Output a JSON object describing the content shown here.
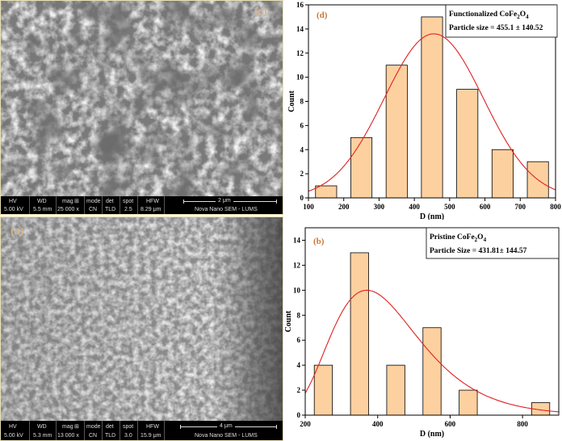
{
  "sem_top": {
    "label": "(c)",
    "header": [
      "HV",
      "WD",
      "mag",
      "mode",
      "det",
      "spot",
      "HFW"
    ],
    "values": [
      "5.00 kV",
      "5.5 mm",
      "25 000 x",
      "CN",
      "TLD",
      "2.5",
      "8.29 μm"
    ],
    "scale": "2 μm",
    "footer": "Nova Nano SEM - LUMS"
  },
  "sem_bottom": {
    "label": "(a)",
    "header": [
      "HV",
      "WD",
      "mag",
      "mode",
      "det",
      "spot",
      "HFW"
    ],
    "values": [
      "5.00 kV",
      "5.3 mm",
      "13 000 x",
      "CN",
      "TLD",
      "3.0",
      "15.9 μm"
    ],
    "scale": "4 μm",
    "footer": "Nova Nano SEM - LUMS"
  },
  "chart_data": [
    {
      "type": "bar",
      "panel_label": "(d)",
      "legend_title": "Functionalized  CoFe",
      "legend_title_sub1": "2",
      "legend_title_mid": "O",
      "legend_title_sub2": "4",
      "legend_text": "Particle size = 455.1 ± 140.52",
      "xlabel": "D (nm)",
      "ylabel": "Count",
      "xlim": [
        100,
        800
      ],
      "ylim": [
        0,
        16
      ],
      "xticks": [
        100,
        200,
        300,
        400,
        500,
        600,
        700,
        800
      ],
      "yticks": [
        0,
        2,
        4,
        6,
        8,
        10,
        12,
        14,
        16
      ],
      "bin_width": 60,
      "x": [
        150,
        250,
        350,
        450,
        550,
        650,
        750
      ],
      "values": [
        1,
        5,
        11,
        15,
        9,
        4,
        3
      ],
      "fit": {
        "type": "gaussian",
        "mean": 455.1,
        "sd": 140.52,
        "amplitude": 13.6
      },
      "bar_color": "#fdd0a0",
      "fit_color": "#e02020"
    },
    {
      "type": "bar",
      "panel_label": "(b)",
      "legend_title": "Pristine CoFe",
      "legend_title_sub1": "2",
      "legend_title_mid": "O",
      "legend_title_sub2": "4",
      "legend_text": "Particle Size = 431.81± 144.57",
      "xlabel": "D (nm)",
      "ylabel": "Count",
      "xlim": [
        200,
        900
      ],
      "ylim": [
        0,
        15
      ],
      "xticks": [
        200,
        400,
        600,
        800
      ],
      "yticks": [
        0,
        2,
        4,
        6,
        8,
        10,
        12,
        14
      ],
      "bin_width": 50,
      "x": [
        250,
        350,
        450,
        550,
        650,
        850
      ],
      "values": [
        4,
        13,
        4,
        7,
        2,
        1
      ],
      "fit": {
        "type": "lognormal",
        "peak": 370,
        "mu": 6.0,
        "sigma": 0.33,
        "amplitude": 10
      },
      "bar_color": "#fdd0a0",
      "fit_color": "#e02020"
    }
  ],
  "colors": {
    "frame": "#e8e0b0"
  }
}
